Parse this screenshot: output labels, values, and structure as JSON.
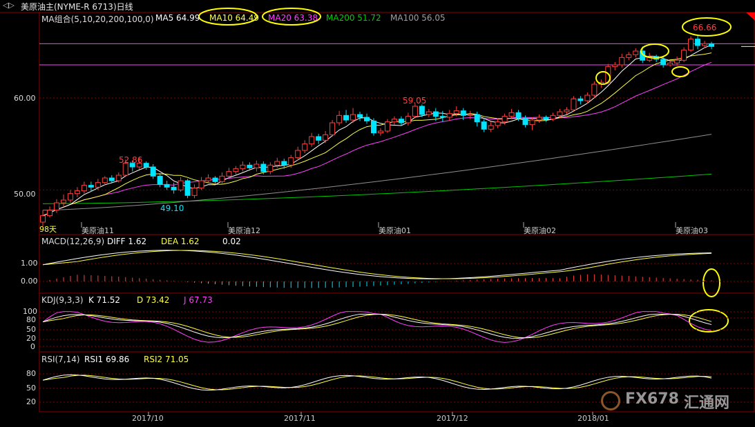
{
  "header": {
    "title": "美原油主(NYME-R 6713)日线",
    "icon": "arrows-icon"
  },
  "price_panel": {
    "ma_label": "MA组合(5,10,20,200,100,0)",
    "ma5": "MA5 64.99",
    "ma10": "MA10 64.49",
    "ma20": "MA20 63.38",
    "ma200": "MA200 51.72",
    "ma100": "MA100 56.05",
    "days_label": "98天",
    "contracts": [
      "美原油11",
      "美原油12",
      "美原油01",
      "美原油02",
      "美原油03"
    ],
    "y_ticks": [
      "60.00",
      "50.00"
    ],
    "annotations": [
      "52.86",
      "49.10",
      "59.05",
      "66.66"
    ]
  },
  "macd_panel": {
    "label": "MACD(12,26,9)",
    "diff": "DIFF  1.62",
    "dea": "DEA  1.62",
    "macd": "0.02",
    "y_ticks": [
      "1.00",
      "0.00"
    ]
  },
  "kdj_panel": {
    "label": "KDJ(9,3,3)",
    "k": "K  71.52",
    "d": "D  73.42",
    "j": "J  67.73",
    "y_ticks": [
      "100",
      "80",
      "50",
      "20",
      "0"
    ]
  },
  "rsi_panel": {
    "label": "RSI(7,14)",
    "rsi1": "RSI1  69.86",
    "rsi2": "RSI2  71.05",
    "y_ticks": [
      "80",
      "50",
      "20"
    ]
  },
  "x_axis": [
    "2017/10",
    "2017/11",
    "2017/12",
    "2018/01"
  ],
  "watermark": {
    "text": "FX678",
    "cn": "汇通网"
  },
  "colors": {
    "up": "#ff4040",
    "down": "#00e5ff",
    "ma5": "#ffffff",
    "ma10": "#ffff40",
    "ma20": "#ff40ff",
    "ma200": "#00c800",
    "ma100": "#909090",
    "grid": "#8b0000",
    "highlight": "#ffff00"
  },
  "chart_data": {
    "type": "candlestick",
    "title": "美原油主(NYME-R 6713)日线",
    "ylim": [
      46.5,
      69
    ],
    "candles": [
      [
        46.5,
        47.2,
        46.0,
        47.8
      ],
      [
        47.2,
        47.8,
        47.0,
        48.2
      ],
      [
        47.8,
        48.6,
        47.5,
        49.0
      ],
      [
        48.6,
        48.9,
        48.2,
        49.5
      ],
      [
        48.9,
        49.6,
        48.6,
        50.0
      ],
      [
        49.6,
        49.9,
        49.2,
        50.3
      ],
      [
        49.9,
        50.5,
        49.6,
        50.9
      ],
      [
        50.5,
        50.3,
        49.8,
        50.9
      ],
      [
        50.3,
        50.8,
        50.0,
        51.2
      ],
      [
        50.8,
        51.3,
        50.5,
        51.5
      ],
      [
        51.3,
        51.0,
        50.7,
        51.6
      ],
      [
        51.0,
        51.6,
        50.8,
        51.9
      ],
      [
        51.6,
        52.9,
        51.4,
        53.3
      ],
      [
        52.9,
        52.5,
        52.0,
        53.2
      ],
      [
        52.5,
        52.9,
        52.2,
        53.6
      ],
      [
        52.9,
        52.5,
        52.2,
        53.1
      ],
      [
        52.5,
        51.5,
        51.2,
        52.8
      ],
      [
        51.5,
        50.6,
        50.3,
        51.8
      ],
      [
        50.6,
        50.3,
        50.0,
        51.0
      ],
      [
        50.3,
        50.0,
        49.6,
        50.8
      ],
      [
        50.0,
        51.0,
        49.8,
        51.4
      ],
      [
        51.0,
        49.4,
        49.1,
        51.2
      ],
      [
        49.4,
        50.2,
        49.1,
        50.6
      ],
      [
        50.2,
        51.0,
        50.0,
        51.4
      ],
      [
        51.0,
        51.3,
        50.7,
        51.7
      ],
      [
        51.3,
        50.9,
        50.6,
        51.5
      ],
      [
        50.9,
        51.5,
        50.6,
        51.9
      ],
      [
        51.5,
        52.0,
        51.2,
        52.4
      ],
      [
        52.0,
        52.3,
        51.7,
        52.6
      ],
      [
        52.3,
        52.7,
        52.0,
        53.1
      ],
      [
        52.7,
        52.4,
        52.1,
        53.0
      ],
      [
        52.4,
        52.8,
        52.0,
        53.2
      ],
      [
        52.8,
        52.0,
        51.7,
        53.1
      ],
      [
        52.0,
        52.7,
        51.7,
        53.0
      ],
      [
        52.7,
        53.1,
        52.4,
        53.5
      ],
      [
        53.1,
        52.7,
        52.3,
        53.4
      ],
      [
        52.7,
        53.5,
        52.4,
        53.8
      ],
      [
        53.5,
        54.3,
        53.2,
        54.7
      ],
      [
        54.3,
        55.0,
        54.0,
        55.4
      ],
      [
        55.0,
        55.8,
        54.7,
        56.2
      ],
      [
        55.8,
        55.4,
        55.0,
        56.1
      ],
      [
        55.4,
        56.0,
        55.1,
        56.4
      ],
      [
        56.0,
        57.3,
        55.8,
        57.6
      ],
      [
        57.3,
        58.1,
        57.0,
        58.6
      ],
      [
        58.1,
        57.6,
        57.3,
        58.7
      ],
      [
        57.6,
        58.2,
        57.3,
        58.9
      ],
      [
        58.2,
        57.9,
        57.5,
        58.5
      ],
      [
        57.9,
        57.5,
        57.2,
        58.3
      ],
      [
        57.5,
        56.2,
        55.9,
        57.8
      ],
      [
        56.2,
        56.4,
        55.9,
        56.7
      ],
      [
        56.4,
        57.4,
        56.2,
        57.7
      ],
      [
        57.4,
        57.7,
        57.1,
        58.0
      ],
      [
        57.7,
        57.3,
        57.0,
        58.0
      ],
      [
        57.3,
        58.0,
        57.0,
        58.4
      ],
      [
        58.0,
        59.1,
        57.8,
        59.4
      ],
      [
        59.1,
        58.2,
        57.9,
        59.3
      ],
      [
        58.2,
        58.5,
        57.9,
        58.8
      ],
      [
        58.5,
        58.0,
        57.5,
        58.9
      ],
      [
        58.0,
        57.9,
        57.4,
        58.6
      ],
      [
        57.9,
        58.3,
        57.5,
        58.7
      ],
      [
        58.3,
        58.6,
        58.0,
        59.1
      ],
      [
        58.6,
        58.1,
        57.6,
        58.9
      ],
      [
        58.1,
        58.2,
        57.7,
        58.6
      ],
      [
        58.2,
        57.4,
        56.9,
        58.5
      ],
      [
        57.4,
        56.6,
        56.3,
        57.7
      ],
      [
        56.6,
        57.0,
        56.3,
        57.4
      ],
      [
        57.0,
        57.4,
        56.7,
        57.8
      ],
      [
        57.4,
        58.0,
        57.1,
        58.3
      ],
      [
        58.0,
        58.4,
        57.7,
        58.8
      ],
      [
        58.4,
        57.8,
        57.5,
        58.7
      ],
      [
        57.8,
        57.1,
        56.8,
        58.1
      ],
      [
        57.1,
        57.6,
        56.5,
        57.9
      ],
      [
        57.6,
        57.9,
        57.3,
        58.2
      ],
      [
        57.9,
        57.7,
        57.4,
        58.1
      ],
      [
        57.7,
        58.1,
        57.5,
        58.4
      ],
      [
        58.1,
        58.5,
        57.8,
        58.8
      ],
      [
        58.5,
        58.7,
        58.2,
        59.0
      ],
      [
        58.7,
        59.9,
        58.5,
        60.2
      ],
      [
        59.9,
        59.7,
        59.3,
        60.2
      ],
      [
        59.7,
        60.3,
        59.4,
        60.6
      ],
      [
        60.3,
        61.5,
        60.0,
        61.8
      ],
      [
        61.5,
        61.7,
        61.1,
        62.0
      ],
      [
        61.7,
        63.4,
        61.5,
        63.7
      ],
      [
        63.4,
        63.6,
        63.0,
        63.9
      ],
      [
        63.6,
        64.4,
        63.3,
        64.8
      ],
      [
        64.4,
        64.7,
        64.1,
        65.0
      ],
      [
        64.7,
        65.1,
        64.4,
        65.4
      ],
      [
        65.1,
        64.1,
        63.8,
        65.6
      ],
      [
        64.1,
        64.5,
        63.9,
        64.9
      ],
      [
        64.5,
        64.2,
        63.9,
        64.7
      ],
      [
        64.2,
        63.6,
        63.3,
        64.5
      ],
      [
        63.6,
        63.8,
        63.4,
        64.1
      ],
      [
        63.8,
        64.1,
        63.5,
        64.5
      ],
      [
        64.1,
        65.2,
        63.9,
        65.5
      ],
      [
        65.2,
        66.4,
        65.0,
        66.7
      ],
      [
        66.4,
        65.7,
        65.3,
        66.8
      ],
      [
        65.7,
        65.9,
        65.4,
        66.2
      ],
      [
        65.9,
        65.6,
        65.3,
        66.1
      ]
    ],
    "ma200_range": [
      48.5,
      51.72
    ],
    "ma100_range": [
      47.8,
      56.05
    ],
    "hlines": [
      65.9,
      63.6
    ],
    "annotations": [
      {
        "label": "52.86",
        "index": 13
      },
      {
        "label": "49.10",
        "index": 21
      },
      {
        "label": "59.05",
        "index": 54
      },
      {
        "label": "66.66",
        "index": 94
      }
    ]
  }
}
